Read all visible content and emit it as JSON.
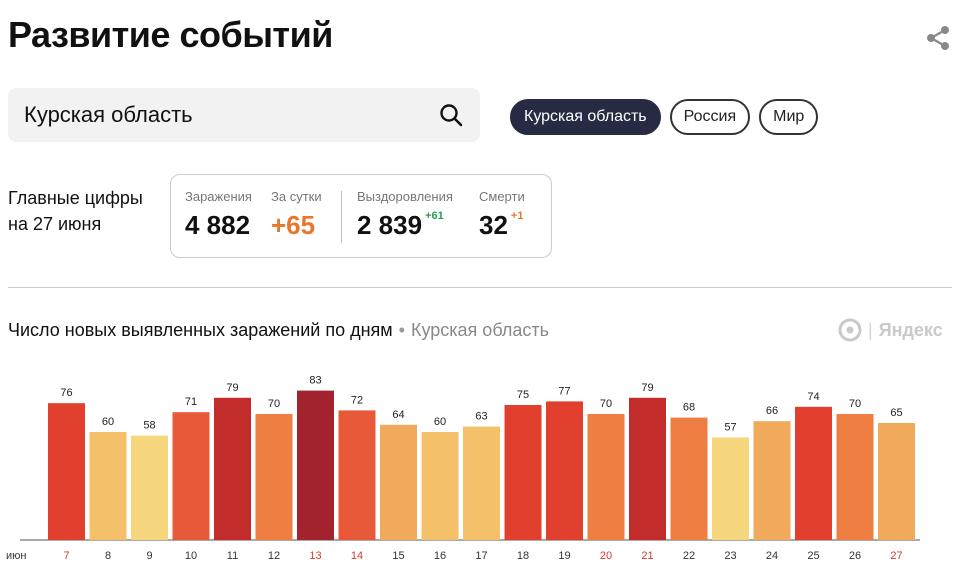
{
  "header": {
    "title": "Развитие событий"
  },
  "search": {
    "value": "Курская область"
  },
  "tabs": [
    {
      "label": "Курская область",
      "active": true
    },
    {
      "label": "Россия",
      "active": false
    },
    {
      "label": "Мир",
      "active": false
    }
  ],
  "main_figures": {
    "label_line1": "Главные цифры",
    "label_line2": "на 27 июня",
    "infections": {
      "label": "Заражения",
      "value": "4 882"
    },
    "per_day": {
      "label": "За сутки",
      "value": "+65"
    },
    "recovered": {
      "label": "Выздоровления",
      "value": "2 839",
      "delta": "+61"
    },
    "deaths": {
      "label": "Смерти",
      "value": "32",
      "delta": "+1"
    }
  },
  "chart_section": {
    "title": "Число новых выявленных заражений по дням",
    "separator": "•",
    "region": "Курская область",
    "brand": "Яндекс"
  },
  "colors": {
    "active_tab": "#262a43",
    "accent_orange": "#e8762c",
    "accent_green": "#2a9d5c",
    "weekend_label": "#d63a2a"
  },
  "chart_data": {
    "type": "bar",
    "title": "Число новых выявленных заражений по дням",
    "month_label": "июн",
    "categories": [
      "7",
      "8",
      "9",
      "10",
      "11",
      "12",
      "13",
      "14",
      "15",
      "16",
      "17",
      "18",
      "19",
      "20",
      "21",
      "22",
      "23",
      "24",
      "25",
      "26",
      "27"
    ],
    "values": [
      76,
      60,
      58,
      71,
      79,
      70,
      83,
      72,
      64,
      60,
      63,
      75,
      77,
      70,
      79,
      68,
      57,
      66,
      74,
      70,
      65
    ],
    "weekend_categories": [
      "7",
      "13",
      "14",
      "20",
      "21",
      "27"
    ],
    "ylim": [
      0,
      90
    ],
    "grid": false
  }
}
